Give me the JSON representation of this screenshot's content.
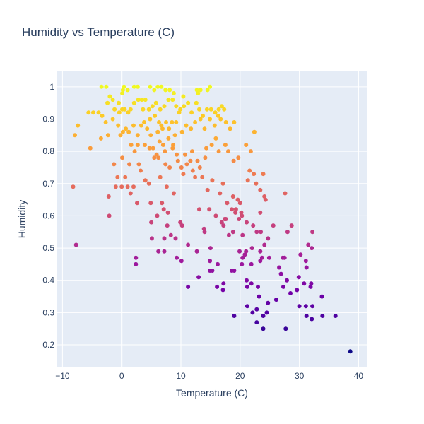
{
  "chart_data": {
    "type": "scatter",
    "title": "Humidity vs Temperature (C)",
    "xlabel": "Temperature (C)",
    "ylabel": "Humidity",
    "xlim": [
      -11,
      41.5
    ],
    "ylim": [
      0.13,
      1.05
    ],
    "x_ticks": [
      -10,
      0,
      10,
      20,
      30,
      40
    ],
    "y_ticks": [
      0.2,
      0.3,
      0.4,
      0.5,
      0.6,
      0.7,
      0.8,
      0.9,
      1
    ],
    "x_tick_labels": [
      "−10",
      "0",
      "10",
      "20",
      "30",
      "40"
    ],
    "y_tick_labels": [
      "0.2",
      "0.3",
      "0.4",
      "0.5",
      "0.6",
      "0.7",
      "0.8",
      "0.9",
      "1"
    ],
    "grid": true,
    "background_color": "#e5ecf6",
    "grid_color": "#ffffff",
    "text_color": "#2a3f5f",
    "color_scale": "plasma",
    "color_by": "Humidity",
    "series": [
      {
        "points": [
          [
            38.6,
            0.18
          ],
          [
            23.9,
            0.25
          ],
          [
            27.7,
            0.25
          ],
          [
            22.8,
            0.27
          ],
          [
            19.0,
            0.29
          ],
          [
            22.1,
            0.3
          ],
          [
            23.9,
            0.29
          ],
          [
            24.5,
            0.3
          ],
          [
            26.1,
            0.34
          ],
          [
            31.2,
            0.29
          ],
          [
            32.1,
            0.28
          ],
          [
            33.9,
            0.29
          ],
          [
            36.1,
            0.29
          ],
          [
            21.2,
            0.32
          ],
          [
            30.0,
            0.32
          ],
          [
            32.2,
            0.32
          ],
          [
            31.1,
            0.32
          ],
          [
            24.7,
            0.33
          ],
          [
            33.8,
            0.35
          ],
          [
            22.8,
            0.31
          ],
          [
            13.0,
            0.41
          ],
          [
            11.2,
            0.38
          ],
          [
            16.1,
            0.38
          ],
          [
            17.1,
            0.37
          ],
          [
            17.2,
            0.39
          ],
          [
            20.3,
            0.45
          ],
          [
            21.1,
            0.4
          ],
          [
            21.9,
            0.39
          ],
          [
            21.2,
            0.38
          ],
          [
            23.0,
            0.38
          ],
          [
            26.9,
            0.42
          ],
          [
            27.9,
            0.4
          ],
          [
            27.3,
            0.38
          ],
          [
            28.5,
            0.36
          ],
          [
            29.6,
            0.37
          ],
          [
            30.8,
            0.39
          ],
          [
            29.9,
            0.41
          ],
          [
            31.9,
            0.38
          ],
          [
            32.0,
            0.39
          ],
          [
            23.2,
            0.35
          ],
          [
            18.6,
            0.43
          ],
          [
            19.0,
            0.43
          ],
          [
            20.4,
            0.47
          ],
          [
            21.9,
            0.45
          ],
          [
            23.4,
            0.46
          ],
          [
            23.7,
            0.47
          ],
          [
            24.9,
            0.47
          ],
          [
            26.6,
            0.44
          ],
          [
            27.5,
            0.47
          ],
          [
            27.2,
            0.47
          ],
          [
            30.2,
            0.48
          ],
          [
            31.1,
            0.46
          ],
          [
            31.2,
            0.44
          ],
          [
            2.4,
            0.45
          ],
          [
            2.4,
            0.47
          ],
          [
            6.2,
            0.49
          ],
          [
            7.2,
            0.49
          ],
          [
            9.3,
            0.47
          ],
          [
            10.1,
            0.46
          ],
          [
            14.9,
            0.46
          ],
          [
            14.9,
            0.43
          ],
          [
            15.3,
            0.43
          ],
          [
            16.2,
            0.45
          ],
          [
            12.7,
            0.49
          ],
          [
            15.0,
            0.5
          ],
          [
            19.9,
            0.49
          ],
          [
            21.0,
            0.49
          ],
          [
            22.0,
            0.5
          ],
          [
            23.4,
            0.49
          ],
          [
            24.1,
            0.51
          ],
          [
            24.7,
            0.53
          ],
          [
            31.5,
            0.51
          ],
          [
            32.1,
            0.5
          ],
          [
            32.2,
            0.55
          ],
          [
            28.0,
            0.55
          ],
          [
            28.7,
            0.57
          ],
          [
            23.5,
            0.55
          ],
          [
            20.4,
            0.54
          ],
          [
            18.8,
            0.55
          ],
          [
            -7.7,
            0.51
          ],
          [
            -8.2,
            0.69
          ],
          [
            -2.2,
            0.66
          ],
          [
            -2.1,
            0.6
          ],
          [
            1.0,
            0.69
          ],
          [
            1.5,
            0.67
          ],
          [
            2.0,
            0.69
          ],
          [
            2.6,
            0.64
          ],
          [
            4.9,
            0.64
          ],
          [
            5.0,
            0.58
          ],
          [
            5.1,
            0.53
          ],
          [
            6.0,
            0.6
          ],
          [
            6.8,
            0.64
          ],
          [
            7.1,
            0.62
          ],
          [
            7.2,
            0.53
          ],
          [
            7.7,
            0.57
          ],
          [
            7.8,
            0.61
          ],
          [
            8.3,
            0.54
          ],
          [
            9.1,
            0.53
          ],
          [
            9.9,
            0.58
          ],
          [
            10.2,
            0.57
          ],
          [
            11.2,
            0.51
          ],
          [
            13.1,
            0.62
          ],
          [
            13.9,
            0.56
          ],
          [
            14.0,
            0.55
          ],
          [
            14.8,
            0.62
          ],
          [
            15.9,
            0.6
          ],
          [
            16.9,
            0.58
          ],
          [
            17.2,
            0.57
          ],
          [
            17.4,
            0.59
          ],
          [
            17.6,
            0.59
          ],
          [
            18.1,
            0.54
          ],
          [
            18.6,
            0.62
          ],
          [
            19.2,
            0.61
          ],
          [
            19.8,
            0.59
          ],
          [
            20.3,
            0.6
          ],
          [
            21.1,
            0.58
          ],
          [
            22.2,
            0.57
          ],
          [
            22.8,
            0.55
          ],
          [
            23.4,
            0.61
          ],
          [
            25.6,
            0.57
          ],
          [
            5.3,
            0.81
          ],
          [
            5.9,
            0.79
          ],
          [
            6.2,
            0.78
          ],
          [
            7.0,
            0.82
          ],
          [
            7.4,
            0.76
          ],
          [
            8.1,
            0.75
          ],
          [
            8.6,
            0.81
          ],
          [
            9.5,
            0.77
          ],
          [
            10.1,
            0.75
          ],
          [
            10.4,
            0.73
          ],
          [
            11.0,
            0.76
          ],
          [
            11.6,
            0.77
          ],
          [
            12.0,
            0.74
          ],
          [
            12.4,
            0.72
          ],
          [
            13.6,
            0.72
          ],
          [
            14.5,
            0.68
          ],
          [
            15.3,
            0.71
          ],
          [
            16.6,
            0.67
          ],
          [
            17.1,
            0.7
          ],
          [
            17.8,
            0.64
          ],
          [
            18.8,
            0.66
          ],
          [
            19.3,
            0.62
          ],
          [
            19.6,
            0.65
          ],
          [
            20.0,
            0.64
          ],
          [
            20.2,
            0.61
          ],
          [
            21.3,
            0.71
          ],
          [
            21.6,
            0.74
          ],
          [
            22.3,
            0.73
          ],
          [
            22.7,
            0.7
          ],
          [
            23.4,
            0.68
          ],
          [
            24.1,
            0.66
          ],
          [
            24.3,
            0.65
          ],
          [
            27.6,
            0.67
          ],
          [
            2.9,
            0.76
          ],
          [
            3.2,
            0.74
          ],
          [
            4.0,
            0.71
          ],
          [
            4.6,
            0.7
          ],
          [
            6.5,
            0.72
          ],
          [
            7.6,
            0.69
          ],
          [
            8.8,
            0.67
          ],
          [
            -1.3,
            0.76
          ],
          [
            -0.7,
            0.72
          ],
          [
            0.1,
            0.78
          ],
          [
            0.6,
            0.72
          ],
          [
            1.3,
            0.76
          ],
          [
            2.2,
            0.8
          ],
          [
            2.7,
            0.82
          ],
          [
            3.9,
            0.82
          ],
          [
            4.7,
            0.81
          ],
          [
            5.5,
            0.78
          ],
          [
            6.4,
            0.83
          ],
          [
            7.3,
            0.8
          ],
          [
            7.9,
            0.84
          ],
          [
            8.7,
            0.82
          ],
          [
            9.3,
            0.79
          ],
          [
            10.7,
            0.79
          ],
          [
            11.9,
            0.8
          ],
          [
            12.8,
            0.77
          ],
          [
            13.2,
            0.75
          ],
          [
            14.1,
            0.78
          ],
          [
            14.3,
            0.81
          ],
          [
            15.2,
            0.82
          ],
          [
            15.9,
            0.84
          ],
          [
            16.4,
            0.8
          ],
          [
            17.5,
            0.82
          ],
          [
            18.0,
            0.8
          ],
          [
            18.9,
            0.77
          ],
          [
            19.7,
            0.78
          ],
          [
            21.0,
            0.82
          ],
          [
            21.8,
            0.8
          ],
          [
            22.4,
            0.86
          ],
          [
            23.9,
            0.73
          ],
          [
            0.0,
            0.69
          ],
          [
            -1.0,
            0.69
          ],
          [
            4.9,
            0.85
          ],
          [
            6.1,
            0.86
          ],
          [
            6.7,
            0.88
          ],
          [
            8.0,
            0.87
          ],
          [
            9.2,
            0.89
          ],
          [
            10.2,
            0.86
          ],
          [
            -7.9,
            0.85
          ],
          [
            -7.4,
            0.88
          ],
          [
            -5.6,
            0.92
          ],
          [
            -5.3,
            0.81
          ],
          [
            -4.8,
            0.92
          ],
          [
            -3.9,
            0.92
          ],
          [
            -3.5,
            0.84
          ],
          [
            -2.7,
            0.89
          ],
          [
            -2.3,
            0.85
          ],
          [
            -1.5,
            0.9
          ],
          [
            -1.2,
            0.93
          ],
          [
            -0.6,
            0.88
          ],
          [
            -0.2,
            0.85
          ],
          [
            0.2,
            0.86
          ],
          [
            0.7,
            0.87
          ],
          [
            1.2,
            0.86
          ],
          [
            1.6,
            0.82
          ],
          [
            2.0,
            0.88
          ],
          [
            2.7,
            0.85
          ],
          [
            3.3,
            0.88
          ],
          [
            3.8,
            0.89
          ],
          [
            4.3,
            0.87
          ],
          [
            4.8,
            0.9
          ],
          [
            5.6,
            0.91
          ],
          [
            6.3,
            0.89
          ],
          [
            6.9,
            0.87
          ],
          [
            7.5,
            0.89
          ],
          [
            8.5,
            0.89
          ],
          [
            9.7,
            0.92
          ],
          [
            10.9,
            0.88
          ],
          [
            11.7,
            0.87
          ],
          [
            12.4,
            0.89
          ],
          [
            13.3,
            0.9
          ],
          [
            14.0,
            0.87
          ],
          [
            14.9,
            0.9
          ],
          [
            15.7,
            0.88
          ],
          [
            16.3,
            0.91
          ],
          [
            17.6,
            0.89
          ],
          [
            18.3,
            0.87
          ],
          [
            19.0,
            0.89
          ],
          [
            -3.3,
            0.91
          ],
          [
            -2.4,
            0.95
          ],
          [
            -2.0,
            0.97
          ],
          [
            -1.5,
            0.96
          ],
          [
            -0.4,
            0.92
          ],
          [
            0.1,
            0.93
          ],
          [
            0.5,
            0.93
          ],
          [
            1.1,
            0.92
          ],
          [
            1.5,
            0.93
          ],
          [
            2.1,
            0.95
          ],
          [
            2.8,
            0.96
          ],
          [
            3.4,
            0.96
          ],
          [
            4.0,
            0.96
          ],
          [
            4.6,
            0.93
          ],
          [
            5.2,
            0.94
          ],
          [
            5.8,
            0.95
          ],
          [
            6.5,
            0.93
          ],
          [
            7.2,
            0.94
          ],
          [
            7.9,
            0.96
          ],
          [
            8.6,
            0.96
          ],
          [
            9.2,
            0.94
          ],
          [
            9.9,
            0.93
          ],
          [
            10.5,
            0.94
          ],
          [
            11.2,
            0.95
          ],
          [
            11.8,
            0.92
          ],
          [
            12.6,
            0.95
          ],
          [
            13.1,
            0.93
          ],
          [
            13.7,
            0.91
          ],
          [
            14.4,
            0.93
          ],
          [
            15.1,
            0.93
          ],
          [
            15.8,
            0.92
          ],
          [
            16.4,
            0.93
          ],
          [
            16.9,
            0.94
          ],
          [
            17.3,
            0.93
          ],
          [
            12.7,
            0.99
          ],
          [
            -3.4,
            1.0
          ],
          [
            -2.6,
            1.0
          ],
          [
            0.1,
            0.98
          ],
          [
            0.2,
            0.99
          ],
          [
            0.4,
            1.0
          ],
          [
            1.0,
            0.99
          ],
          [
            2.1,
            1.0
          ],
          [
            2.7,
            1.0
          ],
          [
            4.8,
            1.0
          ],
          [
            5.5,
            0.99
          ],
          [
            6.1,
            1.0
          ],
          [
            6.7,
            1.0
          ],
          [
            7.4,
            0.99
          ],
          [
            8.1,
            0.99
          ],
          [
            8.8,
            0.98
          ],
          [
            10.4,
            0.97
          ],
          [
            13.3,
            0.99
          ],
          [
            14.5,
            0.99
          ],
          [
            14.9,
            1.0
          ],
          [
            12.9,
            0.98
          ],
          [
            -0.5,
            0.95
          ],
          [
            3.6,
            0.93
          ],
          [
            9.0,
            0.85
          ],
          [
            16.7,
            0.9
          ],
          [
            20.8,
            0.48
          ]
        ]
      }
    ]
  }
}
